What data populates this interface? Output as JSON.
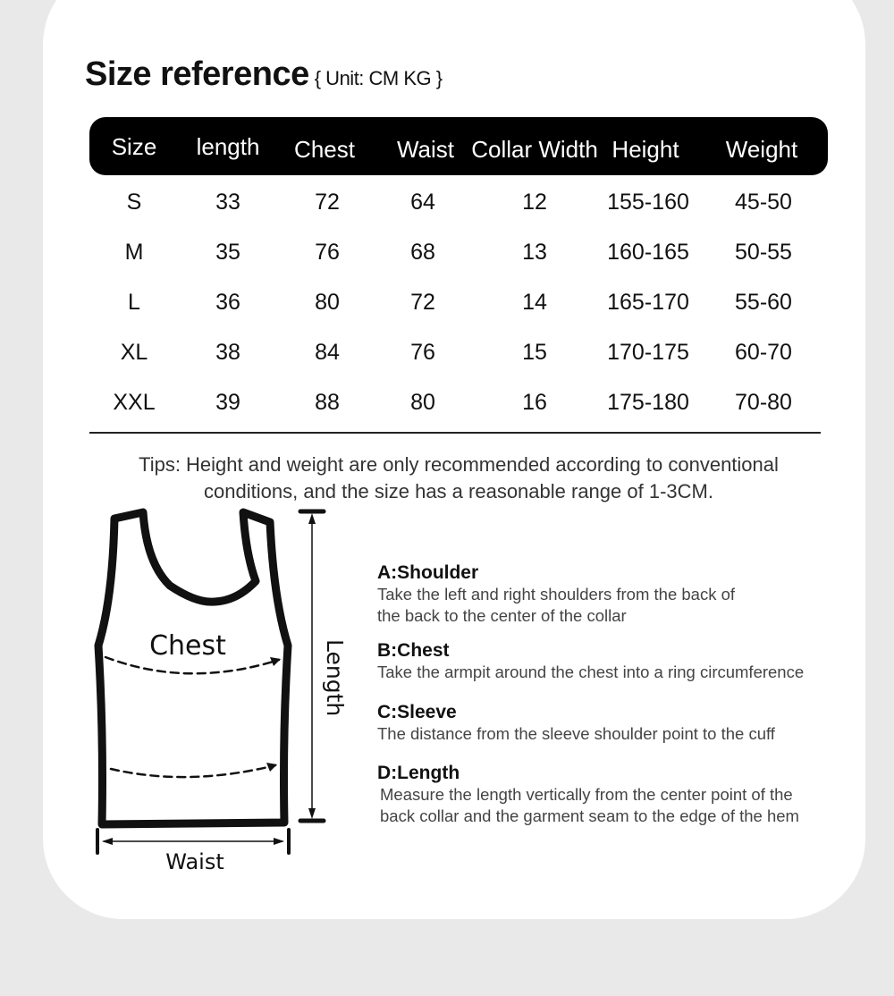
{
  "title": "Size reference",
  "unit": "{ Unit: CM KG }",
  "table": {
    "headers": [
      "Size",
      "length",
      "Chest",
      "Waist",
      "Collar Width",
      "Height",
      "Weight"
    ],
    "rows": [
      [
        "S",
        "33",
        "72",
        "64",
        "12",
        "155-160",
        "45-50"
      ],
      [
        "M",
        "35",
        "76",
        "68",
        "13",
        "160-165",
        "50-55"
      ],
      [
        "L",
        "36",
        "80",
        "72",
        "14",
        "165-170",
        "55-60"
      ],
      [
        "XL",
        "38",
        "84",
        "76",
        "15",
        "170-175",
        "60-70"
      ],
      [
        "XXL",
        "39",
        "88",
        "80",
        "16",
        "175-180",
        "70-80"
      ]
    ]
  },
  "tips": [
    "Tips: Height and weight are only recommended according to conventional",
    "conditions, and the size has a reasonable range of 1-3CM."
  ],
  "diagram": {
    "chest": "Chest",
    "length": "Length",
    "waist": "Waist"
  },
  "measurements": [
    {
      "heading": "A:Shoulder",
      "lines": [
        "Take the left and right shoulders from the back of",
        "the back to the center of the collar"
      ]
    },
    {
      "heading": "B:Chest",
      "lines": [
        "Take the armpit around the chest into a ring circumference"
      ]
    },
    {
      "heading": "C:Sleeve",
      "lines": [
        "The distance from the sleeve shoulder point to the cuff"
      ]
    },
    {
      "heading": "D:Length",
      "lines": [
        "Measure the length vertically from the center point of the",
        "back collar and the garment seam to the edge of the hem"
      ]
    }
  ]
}
